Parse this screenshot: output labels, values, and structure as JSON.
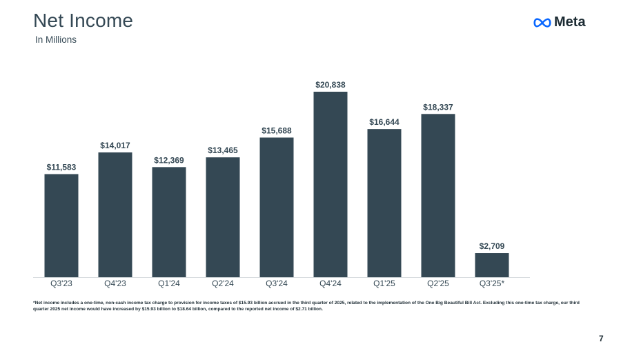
{
  "header": {
    "title": "Net Income",
    "subtitle": "In Millions",
    "logo_text": "Meta",
    "logo_icon": "meta-infinity-icon"
  },
  "chart_data": {
    "type": "bar",
    "title": "Net Income",
    "subtitle": "In Millions",
    "categories": [
      "Q3'23",
      "Q4'23",
      "Q1'24",
      "Q2'24",
      "Q3'24",
      "Q4'24",
      "Q1'25",
      "Q2'25",
      "Q3'25*"
    ],
    "values": [
      11583,
      14017,
      12369,
      13465,
      15688,
      20838,
      16644,
      18337,
      2709
    ],
    "value_labels": [
      "$11,583",
      "$14,017",
      "$12,369",
      "$13,465",
      "$15,688",
      "$20,838",
      "$16,644",
      "$18,337",
      "$2,709"
    ],
    "xlabel": "",
    "ylabel": "",
    "ylim": [
      0,
      20838
    ],
    "grid": false,
    "legend": "none",
    "bar_color": "#344854"
  },
  "footnote": "*Net income includes a one-time, non-cash income tax charge to provision for income taxes of $15.93 billion accrued in the third quarter of 2025, related to the implementation of the One Big Beautiful Bill Act. Excluding this one-time tax charge, our third quarter 2025 net  income would have increased by $15.93 billion to $18.64 billion, compared to the reported net income of $2.71 billion.",
  "page_number": "7"
}
